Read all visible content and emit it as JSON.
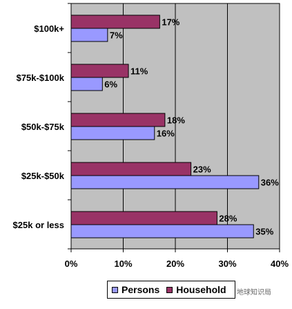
{
  "chart_data": {
    "type": "bar",
    "orientation": "horizontal",
    "categories": [
      "$100k+",
      "$75k-$100k",
      "$50k-$75k",
      "$25k-$50k",
      "$25k or less"
    ],
    "series": [
      {
        "name": "Household",
        "values": [
          17,
          11,
          18,
          23,
          28
        ],
        "labels": [
          "17%",
          "11%",
          "18%",
          "23%",
          "28%"
        ],
        "color": "#993366"
      },
      {
        "name": "Persons",
        "values": [
          7,
          6,
          16,
          36,
          35
        ],
        "labels": [
          "7%",
          "6%",
          "16%",
          "36%",
          "35%"
        ],
        "color": "#9999ff"
      }
    ],
    "xlim": [
      0,
      40
    ],
    "xticks": [
      0,
      10,
      20,
      30,
      40
    ],
    "xtick_labels": [
      "0%",
      "10%",
      "20%",
      "30%",
      "40%"
    ],
    "grid": true,
    "plot_background": "#c0c0c0",
    "legend_position": "bottom",
    "legend": [
      {
        "label": "Persons",
        "color": "#9999ff"
      },
      {
        "label": "Household",
        "color": "#993366"
      }
    ]
  },
  "watermark": "地球知识局"
}
